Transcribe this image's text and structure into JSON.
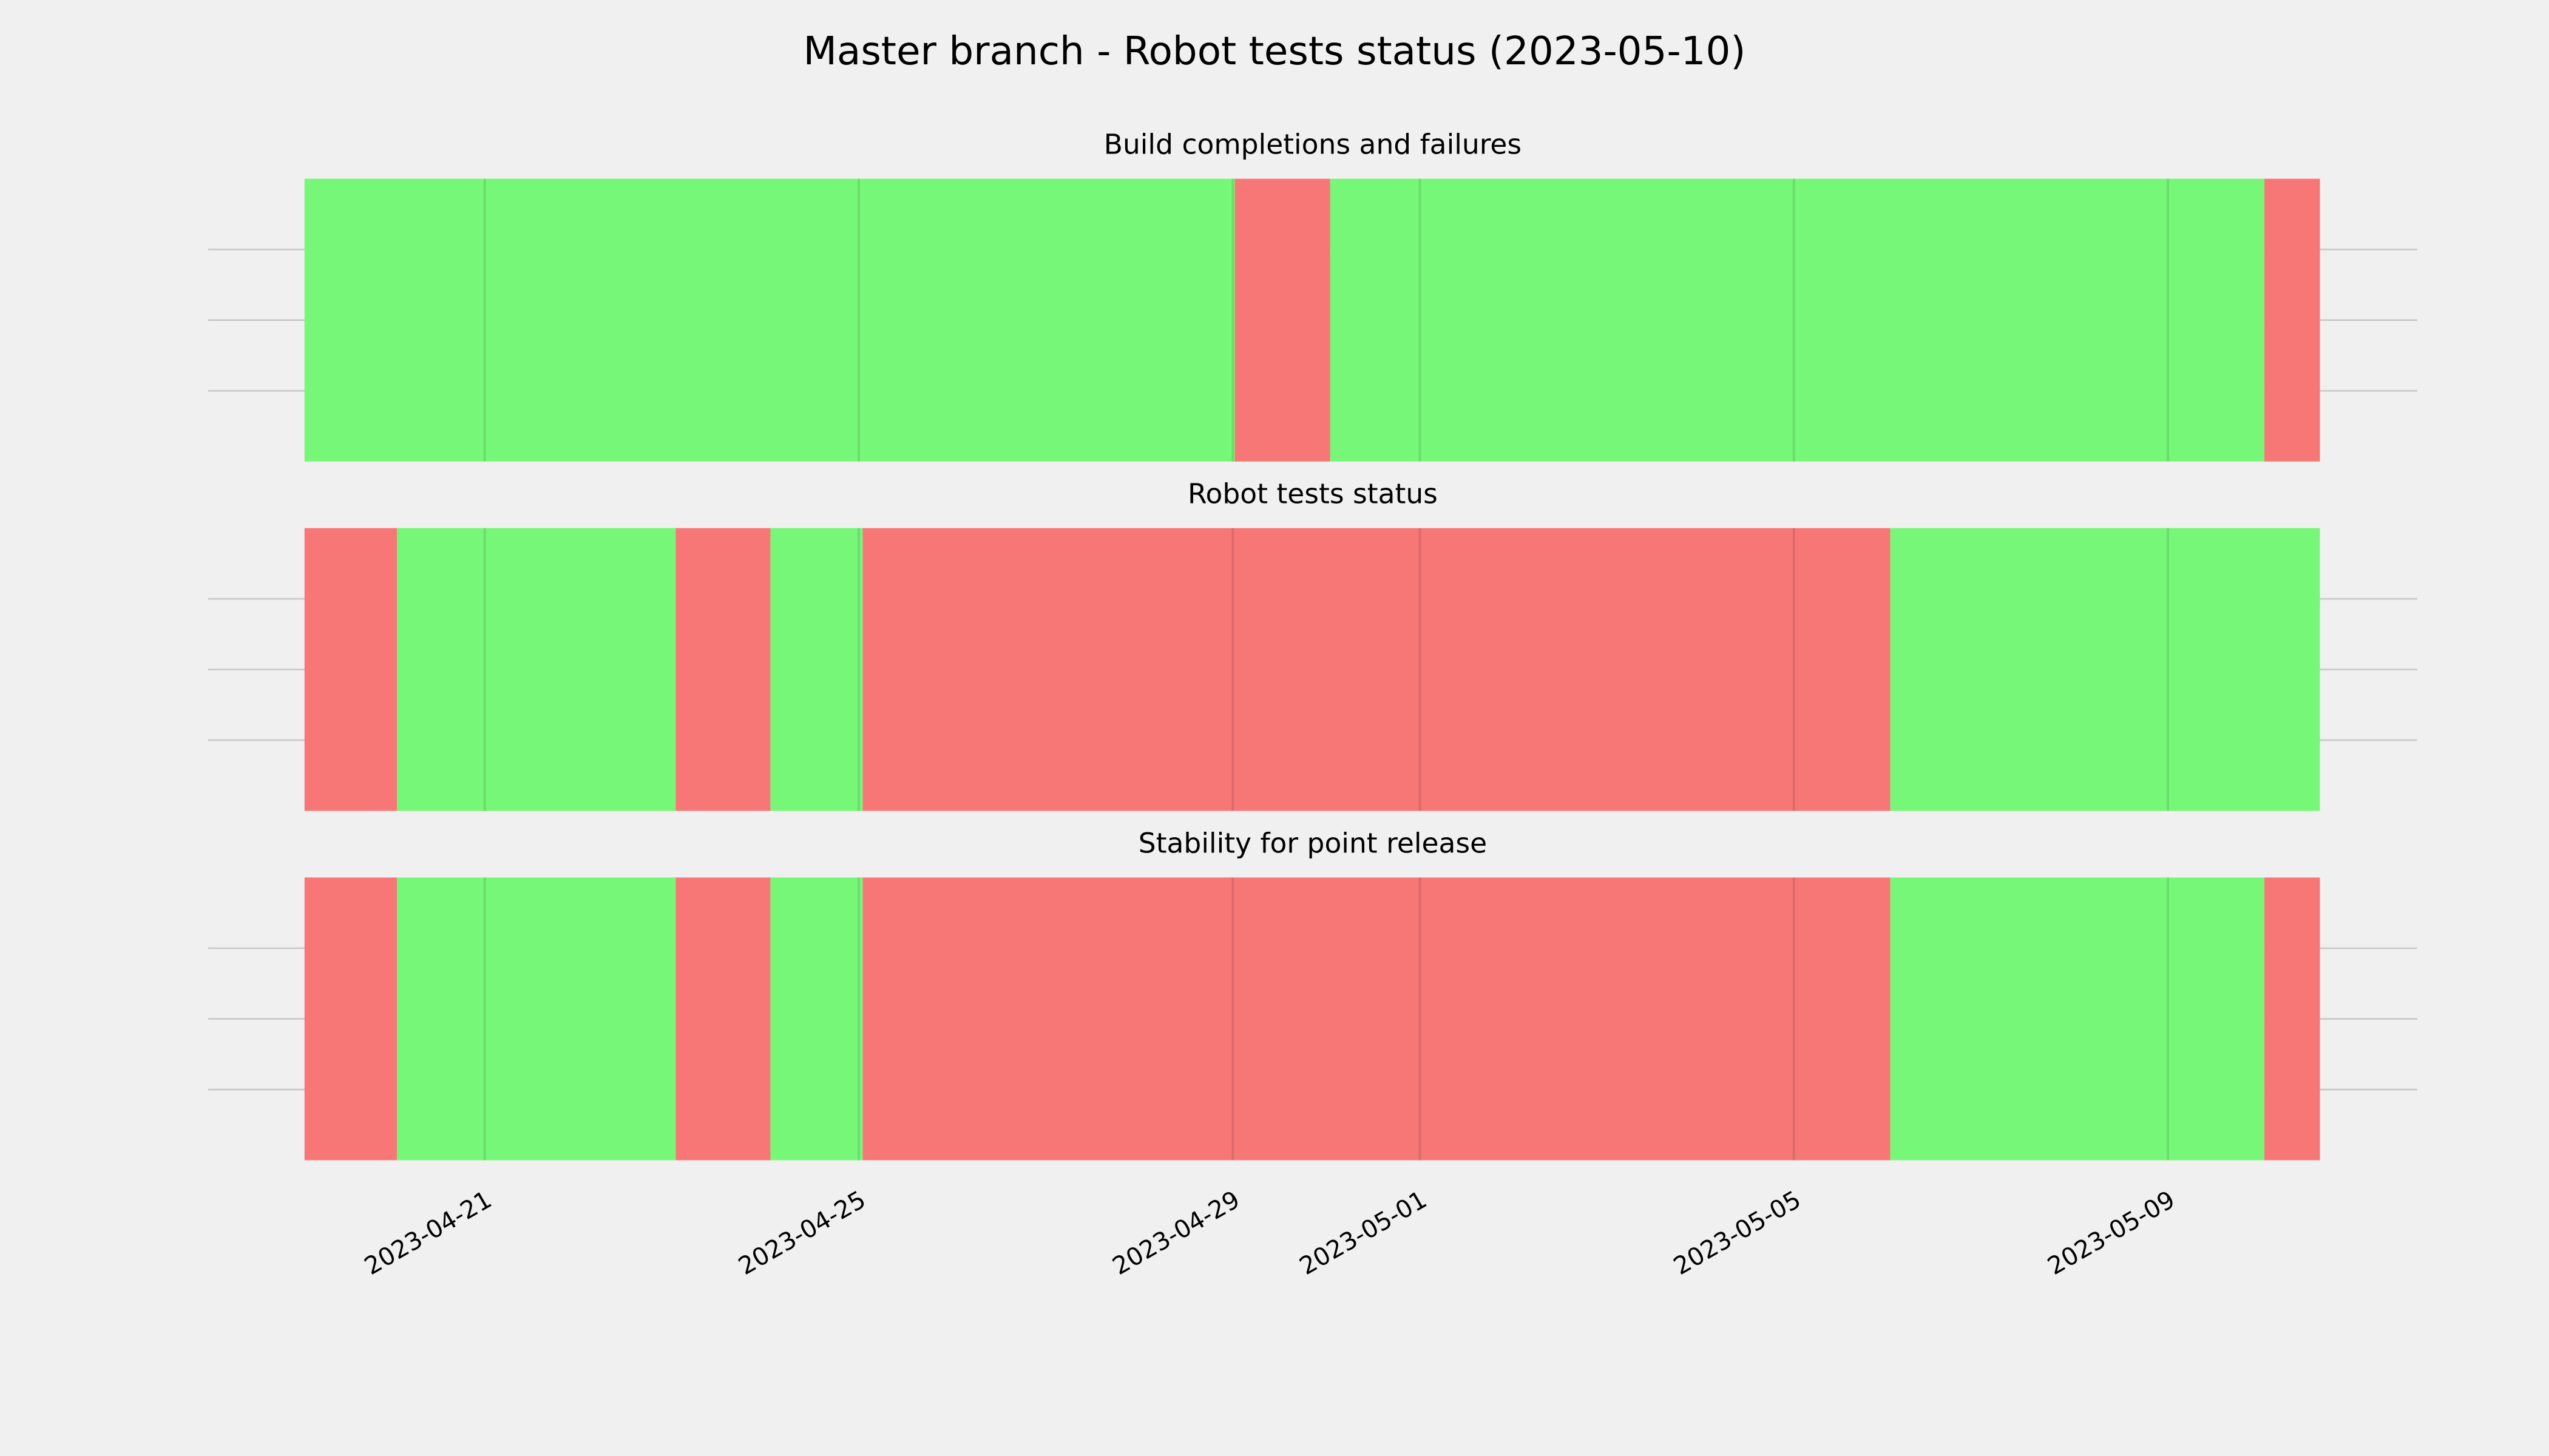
{
  "title": "Master branch - Robot tests status (2023-05-10)",
  "chart_data": [
    {
      "type": "timeline",
      "title": "Build completions and failures",
      "xlim": [
        "2023-04-18 01:00",
        "2023-05-11 16:00"
      ],
      "ylim": [
        0,
        1
      ],
      "yticks": [
        0.25,
        0.5,
        0.75
      ],
      "grid": true,
      "spans": [
        {
          "start": "2023-04-19 01:45",
          "end": "2023-04-29 00:30",
          "color": "#77f777"
        },
        {
          "start": "2023-04-29 00:30",
          "end": "2023-04-30 01:00",
          "color": "#f77777"
        },
        {
          "start": "2023-04-30 01:00",
          "end": "2023-05-10 00:45",
          "color": "#77f777"
        },
        {
          "start": "2023-05-10 00:45",
          "end": "2023-05-10 15:00",
          "color": "#f77777"
        }
      ]
    },
    {
      "type": "timeline",
      "title": "Robot tests status",
      "xlim": [
        "2023-04-18 01:00",
        "2023-05-11 16:00"
      ],
      "ylim": [
        0,
        1
      ],
      "yticks": [
        0.25,
        0.5,
        0.75
      ],
      "grid": true,
      "spans": [
        {
          "start": "2023-04-19 01:45",
          "end": "2023-04-20 01:30",
          "color": "#f77777"
        },
        {
          "start": "2023-04-20 01:30",
          "end": "2023-04-23 01:00",
          "color": "#77f777"
        },
        {
          "start": "2023-04-23 01:00",
          "end": "2023-04-24 01:20",
          "color": "#f77777"
        },
        {
          "start": "2023-04-24 01:20",
          "end": "2023-04-25 01:00",
          "color": "#77f777"
        },
        {
          "start": "2023-04-25 01:00",
          "end": "2023-05-06 00:45",
          "color": "#f77777"
        },
        {
          "start": "2023-05-06 00:45",
          "end": "2023-05-10 15:00",
          "color": "#77f777"
        }
      ]
    },
    {
      "type": "timeline",
      "title": "Stability for point release",
      "xlim": [
        "2023-04-18 01:00",
        "2023-05-11 16:00"
      ],
      "ylim": [
        0,
        1
      ],
      "yticks": [
        0.25,
        0.5,
        0.75
      ],
      "grid": true,
      "xticks": [
        "2023-04-21",
        "2023-04-25",
        "2023-04-29",
        "2023-05-01",
        "2023-05-05",
        "2023-05-09"
      ],
      "spans": [
        {
          "start": "2023-04-19 01:45",
          "end": "2023-04-20 01:30",
          "color": "#f77777"
        },
        {
          "start": "2023-04-20 01:30",
          "end": "2023-04-23 01:00",
          "color": "#77f777"
        },
        {
          "start": "2023-04-23 01:00",
          "end": "2023-04-24 01:20",
          "color": "#f77777"
        },
        {
          "start": "2023-04-24 01:20",
          "end": "2023-04-25 01:00",
          "color": "#77f777"
        },
        {
          "start": "2023-04-25 01:00",
          "end": "2023-05-06 00:45",
          "color": "#f77777"
        },
        {
          "start": "2023-05-06 00:45",
          "end": "2023-05-10 00:45",
          "color": "#77f777"
        },
        {
          "start": "2023-05-10 00:45",
          "end": "2023-05-10 15:00",
          "color": "#f77777"
        }
      ]
    }
  ]
}
